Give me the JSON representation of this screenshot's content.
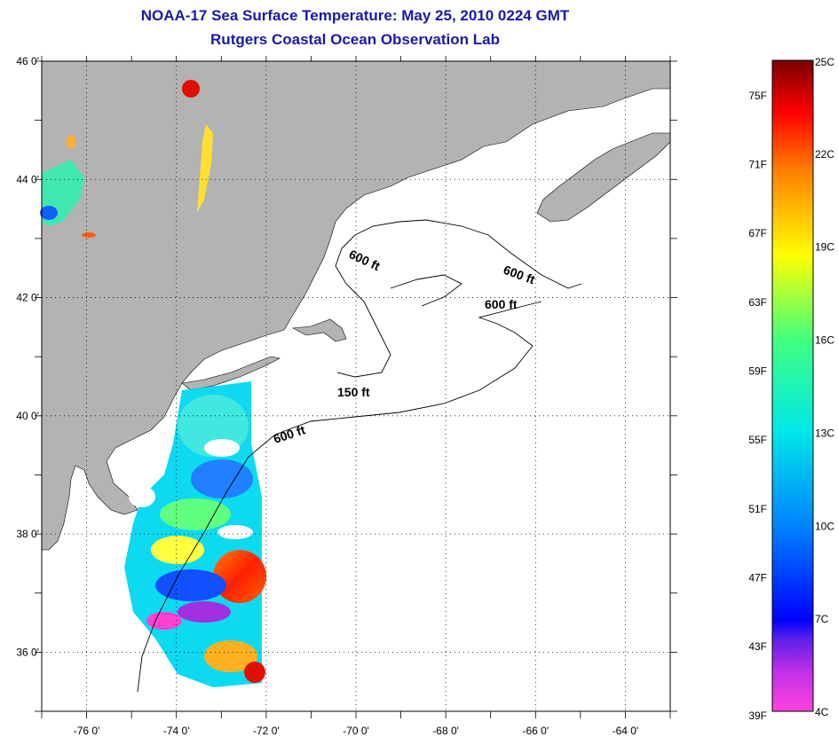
{
  "title": {
    "line1": "NOAA-17 Sea Surface Temperature:  May 25, 2010 0224 GMT",
    "line2": "Rutgers Coastal Ocean Observation Lab"
  },
  "map": {
    "lat_labels": [
      {
        "value": 46,
        "label": "46 0'"
      },
      {
        "value": 44,
        "label": "44 0'"
      },
      {
        "value": 42,
        "label": "42 0'"
      },
      {
        "value": 40,
        "label": "40 0'"
      },
      {
        "value": 38,
        "label": "38 0'"
      },
      {
        "value": 36,
        "label": "36 0'"
      }
    ],
    "lon_labels": [
      {
        "value": -76,
        "label": "-76 0'"
      },
      {
        "value": -74,
        "label": "-74 0'"
      },
      {
        "value": -72,
        "label": "-72 0'"
      },
      {
        "value": -70,
        "label": "-70 0'"
      },
      {
        "value": -68,
        "label": "-68 0'"
      },
      {
        "value": -66,
        "label": "-66 0'"
      },
      {
        "value": -64,
        "label": "-64 0'"
      }
    ],
    "lat_range": [
      35,
      46
    ],
    "lon_range": [
      -77,
      -63
    ],
    "grid": "dotted",
    "land_color": "#b3b3b3",
    "contour_labels": [
      "600 ft",
      "600 ft",
      "600 ft",
      "150 ft",
      "600 ft"
    ]
  },
  "colorbar": {
    "fahrenheit_labels": [
      "75F",
      "71F",
      "67F",
      "63F",
      "59F",
      "55F",
      "51F",
      "47F",
      "43F",
      "39F"
    ],
    "celsius_labels": [
      "25C",
      "22C",
      "19C",
      "16C",
      "13C",
      "10C",
      "7C",
      "4C"
    ],
    "range_c": [
      4,
      25
    ],
    "colors": [
      "#ff44dd",
      "#a020f0",
      "#0000ff",
      "#0090ff",
      "#00e8e8",
      "#40ff80",
      "#ffff00",
      "#ff9000",
      "#ff0000",
      "#800000"
    ]
  }
}
